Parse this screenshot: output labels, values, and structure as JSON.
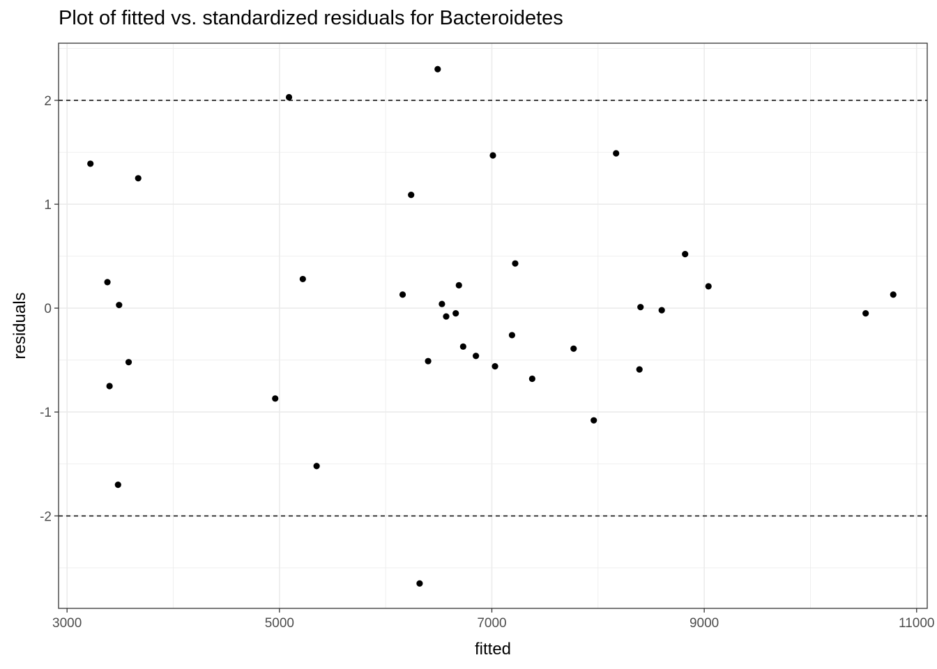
{
  "chart_data": {
    "type": "scatter",
    "title": "Plot of fitted vs. standardized residuals for Bacteroidetes",
    "xlabel": "fitted",
    "ylabel": "residuals",
    "xlim": [
      2920,
      11100
    ],
    "ylim": [
      -2.89,
      2.55
    ],
    "x_ticks": [
      3000,
      5000,
      7000,
      9000,
      11000
    ],
    "x_tick_labels": [
      "3000",
      "5000",
      "7000",
      "9000",
      "11000"
    ],
    "y_ticks": [
      -2,
      -1,
      0,
      1,
      2
    ],
    "y_tick_labels": [
      "-2",
      "-1",
      "0",
      "1",
      "2"
    ],
    "reference_lines": [
      2,
      -2
    ],
    "grid": true,
    "point_color": "#000000",
    "points": [
      {
        "x": 3220,
        "y": 1.39
      },
      {
        "x": 3380,
        "y": 0.25
      },
      {
        "x": 3400,
        "y": -0.75
      },
      {
        "x": 3480,
        "y": -1.7
      },
      {
        "x": 3490,
        "y": 0.03
      },
      {
        "x": 3580,
        "y": -0.52
      },
      {
        "x": 3670,
        "y": 1.25
      },
      {
        "x": 4960,
        "y": -0.87
      },
      {
        "x": 5090,
        "y": 2.03
      },
      {
        "x": 5220,
        "y": 0.28
      },
      {
        "x": 5350,
        "y": -1.52
      },
      {
        "x": 6160,
        "y": 0.13
      },
      {
        "x": 6240,
        "y": 1.09
      },
      {
        "x": 6320,
        "y": -2.65
      },
      {
        "x": 6400,
        "y": -0.51
      },
      {
        "x": 6490,
        "y": 2.3
      },
      {
        "x": 6530,
        "y": 0.04
      },
      {
        "x": 6570,
        "y": -0.08
      },
      {
        "x": 6660,
        "y": -0.05
      },
      {
        "x": 6690,
        "y": 0.22
      },
      {
        "x": 6730,
        "y": -0.37
      },
      {
        "x": 6850,
        "y": -0.46
      },
      {
        "x": 7010,
        "y": 1.47
      },
      {
        "x": 7030,
        "y": -0.56
      },
      {
        "x": 7190,
        "y": -0.26
      },
      {
        "x": 7220,
        "y": 0.43
      },
      {
        "x": 7380,
        "y": -0.68
      },
      {
        "x": 7770,
        "y": -0.39
      },
      {
        "x": 7960,
        "y": -1.08
      },
      {
        "x": 8170,
        "y": 1.49
      },
      {
        "x": 8390,
        "y": -0.59
      },
      {
        "x": 8400,
        "y": 0.01
      },
      {
        "x": 8600,
        "y": -0.02
      },
      {
        "x": 8820,
        "y": 0.52
      },
      {
        "x": 9040,
        "y": 0.21
      },
      {
        "x": 10520,
        "y": -0.05
      },
      {
        "x": 10780,
        "y": 0.13
      }
    ]
  }
}
